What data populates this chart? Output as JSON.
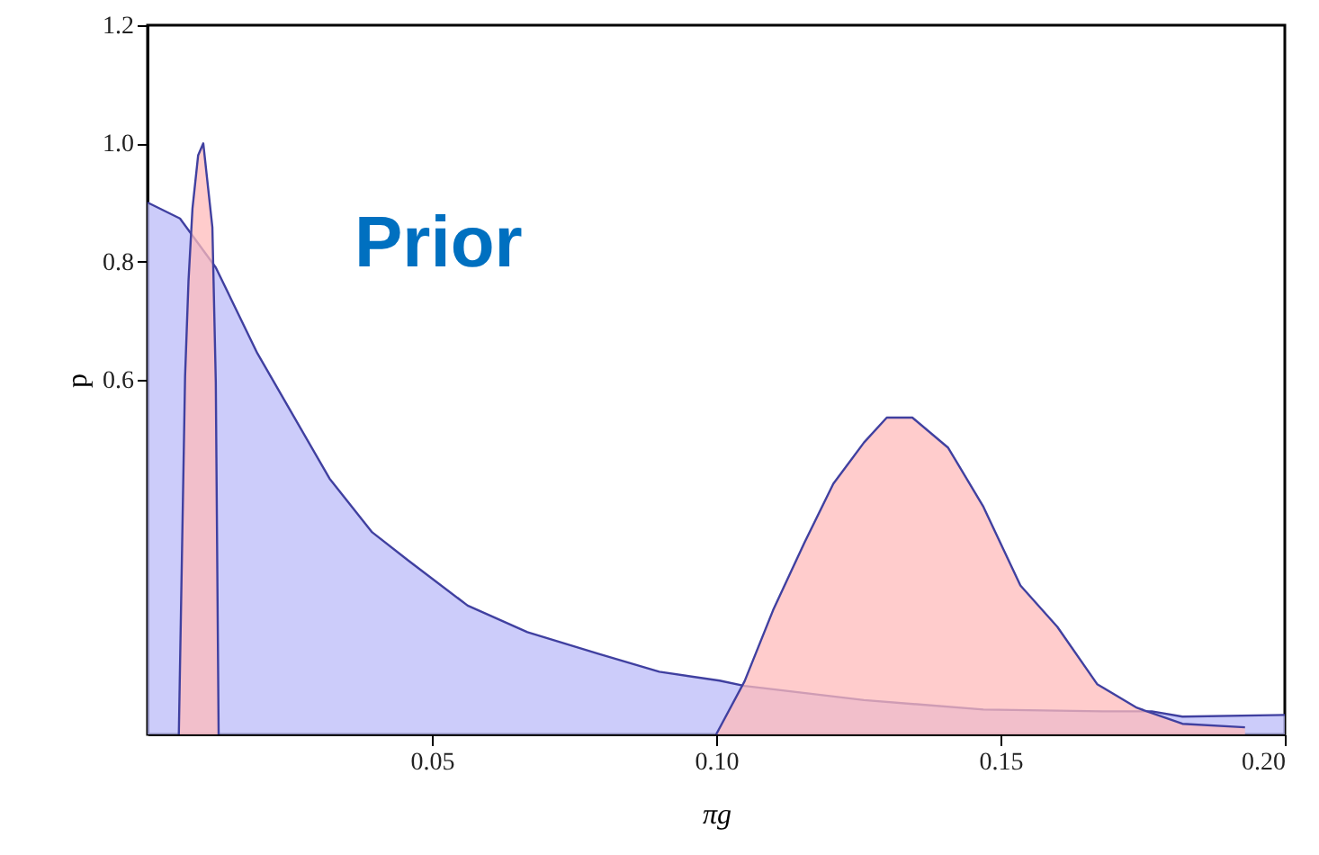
{
  "chart_data": {
    "type": "area",
    "xlabel": "πg",
    "ylabel": "p",
    "annotations": [
      "Prior"
    ],
    "xlim": [
      0,
      0.2
    ],
    "ylim": [
      0,
      1.2
    ],
    "xticks": [
      0.05,
      {
        "value": 0.1,
        "label": "0.10"
      },
      0.15,
      {
        "value": 0.2,
        "label": "0.20"
      }
    ],
    "yticks": [
      0.6,
      0.8,
      {
        "value": 1.0,
        "label": "1.0"
      },
      1.2
    ],
    "grid": false,
    "series": [
      {
        "color": "#bbbbf8",
        "x": [
          0,
          0.0057,
          0.012,
          0.0193,
          0.0247,
          0.032,
          0.0395,
          0.0459,
          0.0563,
          0.0668,
          0.0794,
          0.09,
          0.1006,
          0.105,
          0.126,
          0.147,
          0.168,
          0.1766,
          0.182,
          0.2
        ],
        "values": [
          0.9,
          0.873,
          0.79,
          0.645,
          0.555,
          0.433,
          0.342,
          0.294,
          0.218,
          0.173,
          0.136,
          0.106,
          0.091,
          0.082,
          0.058,
          0.042,
          0.039,
          0.039,
          0.03,
          0.033
        ]
      },
      {
        "color": "#ffbbbb",
        "x": [
          0.0055,
          0.0066,
          0.0072,
          0.0079,
          0.0089,
          0.0098,
          0.0114,
          0.012,
          0.0125
        ],
        "values": [
          0,
          0.606,
          0.767,
          0.89,
          0.98,
          1.0,
          0.858,
          0.597,
          0
        ]
      },
      {
        "color": "#ffbbbb",
        "x": [
          0.1,
          0.105,
          0.11,
          0.1155,
          0.1206,
          0.126,
          0.13,
          0.1345,
          0.1408,
          0.147,
          0.1535,
          0.16,
          0.167,
          0.174,
          0.182,
          0.193
        ],
        "values": [
          0,
          0.09,
          0.21,
          0.324,
          0.424,
          0.494,
          0.536,
          0.536,
          0.485,
          0.385,
          0.252,
          0.182,
          0.085,
          0.045,
          0.018,
          0.012
        ]
      }
    ]
  }
}
